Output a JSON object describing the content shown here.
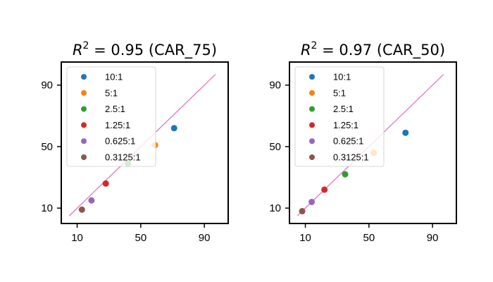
{
  "chart_data": [
    {
      "type": "scatter",
      "title_prefix": "R",
      "title_sup": "2",
      "title_suffix": " = 0.95 (CAR_75)",
      "xlim": [
        0,
        105
      ],
      "ylim": [
        0,
        105
      ],
      "xticks": [
        10,
        50,
        90
      ],
      "yticks": [
        10,
        50,
        90
      ],
      "grid": false,
      "legend": "upper-left",
      "fit_line": {
        "x": [
          5,
          97
        ],
        "y": [
          5,
          97
        ],
        "color": "#e377c2"
      },
      "series": [
        {
          "name": "10:1",
          "color": "#1f77b4",
          "x": [
            71
          ],
          "y": [
            62
          ]
        },
        {
          "name": "5:1",
          "color": "#ff7f0e",
          "x": [
            59
          ],
          "y": [
            51
          ]
        },
        {
          "name": "2.5:1",
          "color": "#2ca02c",
          "x": [
            42
          ],
          "y": [
            39
          ]
        },
        {
          "name": "1.25:1",
          "color": "#d62728",
          "x": [
            28
          ],
          "y": [
            26
          ]
        },
        {
          "name": "0.625:1",
          "color": "#9467bd",
          "x": [
            19
          ],
          "y": [
            15
          ]
        },
        {
          "name": "0.3125:1",
          "color": "#8c564b",
          "x": [
            13
          ],
          "y": [
            9
          ]
        }
      ]
    },
    {
      "type": "scatter",
      "title_prefix": "R",
      "title_sup": "2",
      "title_suffix": " = 0.97 (CAR_50)",
      "xlim": [
        0,
        105
      ],
      "ylim": [
        0,
        105
      ],
      "xticks": [
        10,
        50,
        90
      ],
      "yticks": [
        10,
        50,
        90
      ],
      "grid": false,
      "legend": "upper-left",
      "fit_line": {
        "x": [
          5,
          97
        ],
        "y": [
          5,
          97
        ],
        "color": "#e377c2"
      },
      "series": [
        {
          "name": "10:1",
          "color": "#1f77b4",
          "x": [
            73
          ],
          "y": [
            59
          ]
        },
        {
          "name": "5:1",
          "color": "#ff7f0e",
          "x": [
            53
          ],
          "y": [
            46
          ]
        },
        {
          "name": "2.5:1",
          "color": "#2ca02c",
          "x": [
            35
          ],
          "y": [
            32
          ]
        },
        {
          "name": "1.25:1",
          "color": "#d62728",
          "x": [
            22
          ],
          "y": [
            22
          ]
        },
        {
          "name": "0.625:1",
          "color": "#9467bd",
          "x": [
            14
          ],
          "y": [
            14
          ]
        },
        {
          "name": "0.3125:1",
          "color": "#8c564b",
          "x": [
            8
          ],
          "y": [
            8
          ]
        }
      ]
    }
  ]
}
